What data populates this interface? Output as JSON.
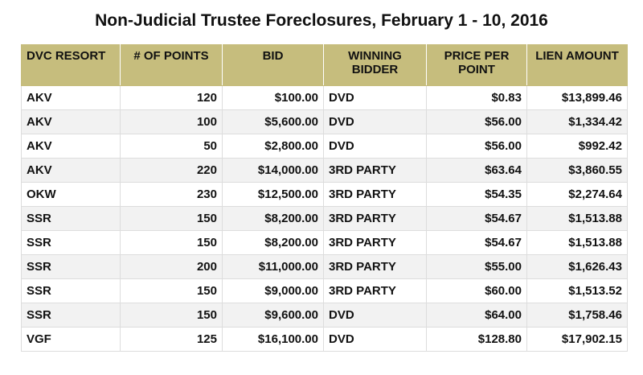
{
  "title": "Non-Judicial Trustee Foreclosures, February 1 - 10, 2016",
  "columns": {
    "resort": "DVC RESORT",
    "points": "# OF POINTS",
    "bid": "BID",
    "bidder": "WINNING BIDDER",
    "price_per_point": "PRICE PER POINT",
    "lien": "LIEN AMOUNT"
  },
  "rows": [
    {
      "resort": "AKV",
      "points": "120",
      "bid": "$100.00",
      "bidder": "DVD",
      "price_per_point": "$0.83",
      "lien": "$13,899.46"
    },
    {
      "resort": "AKV",
      "points": "100",
      "bid": "$5,600.00",
      "bidder": "DVD",
      "price_per_point": "$56.00",
      "lien": "$1,334.42"
    },
    {
      "resort": "AKV",
      "points": "50",
      "bid": "$2,800.00",
      "bidder": "DVD",
      "price_per_point": "$56.00",
      "lien": "$992.42"
    },
    {
      "resort": "AKV",
      "points": "220",
      "bid": "$14,000.00",
      "bidder": "3RD PARTY",
      "price_per_point": "$63.64",
      "lien": "$3,860.55"
    },
    {
      "resort": "OKW",
      "points": "230",
      "bid": "$12,500.00",
      "bidder": "3RD PARTY",
      "price_per_point": "$54.35",
      "lien": "$2,274.64"
    },
    {
      "resort": "SSR",
      "points": "150",
      "bid": "$8,200.00",
      "bidder": "3RD PARTY",
      "price_per_point": "$54.67",
      "lien": "$1,513.88"
    },
    {
      "resort": "SSR",
      "points": "150",
      "bid": "$8,200.00",
      "bidder": "3RD PARTY",
      "price_per_point": "$54.67",
      "lien": "$1,513.88"
    },
    {
      "resort": "SSR",
      "points": "200",
      "bid": "$11,000.00",
      "bidder": "3RD PARTY",
      "price_per_point": "$55.00",
      "lien": "$1,626.43"
    },
    {
      "resort": "SSR",
      "points": "150",
      "bid": "$9,000.00",
      "bidder": "3RD PARTY",
      "price_per_point": "$60.00",
      "lien": "$1,513.52"
    },
    {
      "resort": "SSR",
      "points": "150",
      "bid": "$9,600.00",
      "bidder": "DVD",
      "price_per_point": "$64.00",
      "lien": "$1,758.46"
    },
    {
      "resort": "VGF",
      "points": "125",
      "bid": "$16,100.00",
      "bidder": "DVD",
      "price_per_point": "$128.80",
      "lien": "$17,902.15"
    }
  ],
  "colors": {
    "header_bg": "#c6bd7d",
    "row_alt_bg": "#f2f2f2"
  }
}
